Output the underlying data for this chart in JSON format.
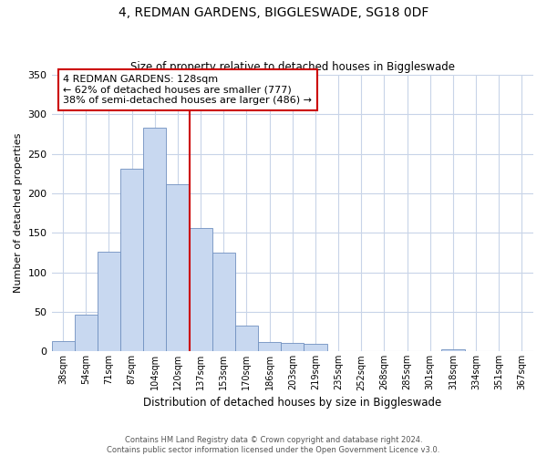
{
  "title": "4, REDMAN GARDENS, BIGGLESWADE, SG18 0DF",
  "subtitle": "Size of property relative to detached houses in Biggleswade",
  "xlabel": "Distribution of detached houses by size in Biggleswade",
  "ylabel": "Number of detached properties",
  "bin_labels": [
    "38sqm",
    "54sqm",
    "71sqm",
    "87sqm",
    "104sqm",
    "120sqm",
    "137sqm",
    "153sqm",
    "170sqm",
    "186sqm",
    "203sqm",
    "219sqm",
    "235sqm",
    "252sqm",
    "268sqm",
    "285sqm",
    "301sqm",
    "318sqm",
    "334sqm",
    "351sqm",
    "367sqm"
  ],
  "bar_heights": [
    13,
    46,
    126,
    231,
    283,
    212,
    156,
    125,
    33,
    12,
    11,
    10,
    0,
    0,
    0,
    0,
    0,
    3,
    0,
    0,
    0
  ],
  "bar_color": "#c8d8f0",
  "bar_edge_color": "#7090c0",
  "vline_color": "#cc0000",
  "ylim": [
    0,
    350
  ],
  "yticks": [
    0,
    50,
    100,
    150,
    200,
    250,
    300,
    350
  ],
  "annotation_title": "4 REDMAN GARDENS: 128sqm",
  "annotation_line1": "← 62% of detached houses are smaller (777)",
  "annotation_line2": "38% of semi-detached houses are larger (486) →",
  "annotation_box_color": "#ffffff",
  "annotation_border_color": "#cc0000",
  "footer_line1": "Contains HM Land Registry data © Crown copyright and database right 2024.",
  "footer_line2": "Contains public sector information licensed under the Open Government Licence v3.0.",
  "background_color": "#ffffff",
  "grid_color": "#c8d4e8"
}
